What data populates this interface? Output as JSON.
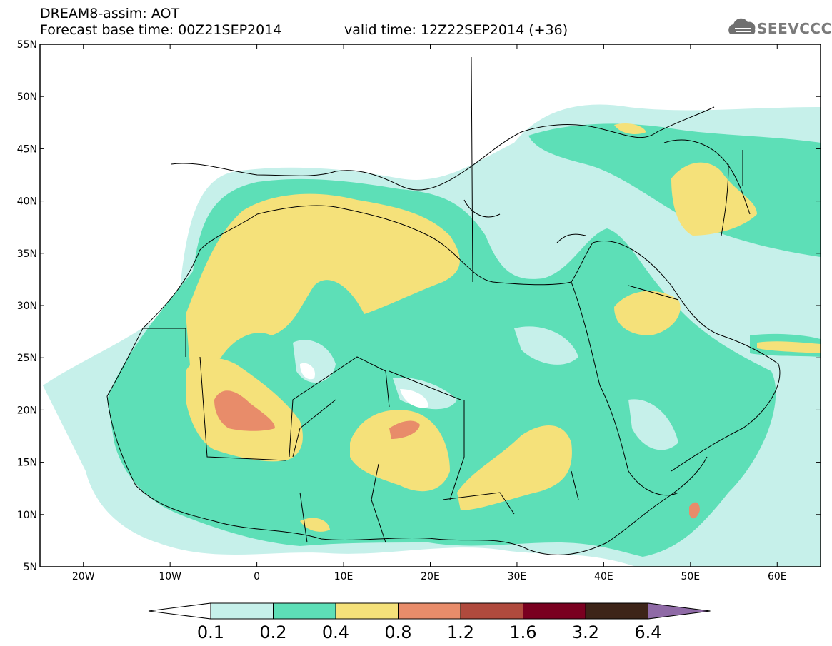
{
  "header": {
    "title": "DREAM8-assim: AOT",
    "forecast_base": "Forecast base time: 00Z21SEP2014",
    "valid": "valid time: 12Z22SEP2014 (+36)"
  },
  "logo": {
    "text": "SEEVCCC",
    "icon": "cloud-icon"
  },
  "map": {
    "lon_labels": [
      "20W",
      "10W",
      "0",
      "10E",
      "20E",
      "30E",
      "40E",
      "50E",
      "60E"
    ],
    "lat_labels": [
      "55N",
      "50N",
      "45N",
      "40N",
      "35N",
      "30N",
      "25N",
      "20N",
      "15N",
      "10N",
      "5N"
    ],
    "lon_range": [
      -25,
      65
    ],
    "lat_range": [
      5,
      55
    ]
  },
  "colorbar": {
    "labels": [
      "0.1",
      "0.2",
      "0.4",
      "0.8",
      "1.2",
      "1.6",
      "3.2",
      "6.4"
    ],
    "colors": [
      "#ffffff",
      "#c6f0ea",
      "#5ddfb7",
      "#f5e17a",
      "#e88c6a",
      "#b04a3d",
      "#7a0020",
      "#3d2418",
      "#8f6aa6"
    ]
  }
}
